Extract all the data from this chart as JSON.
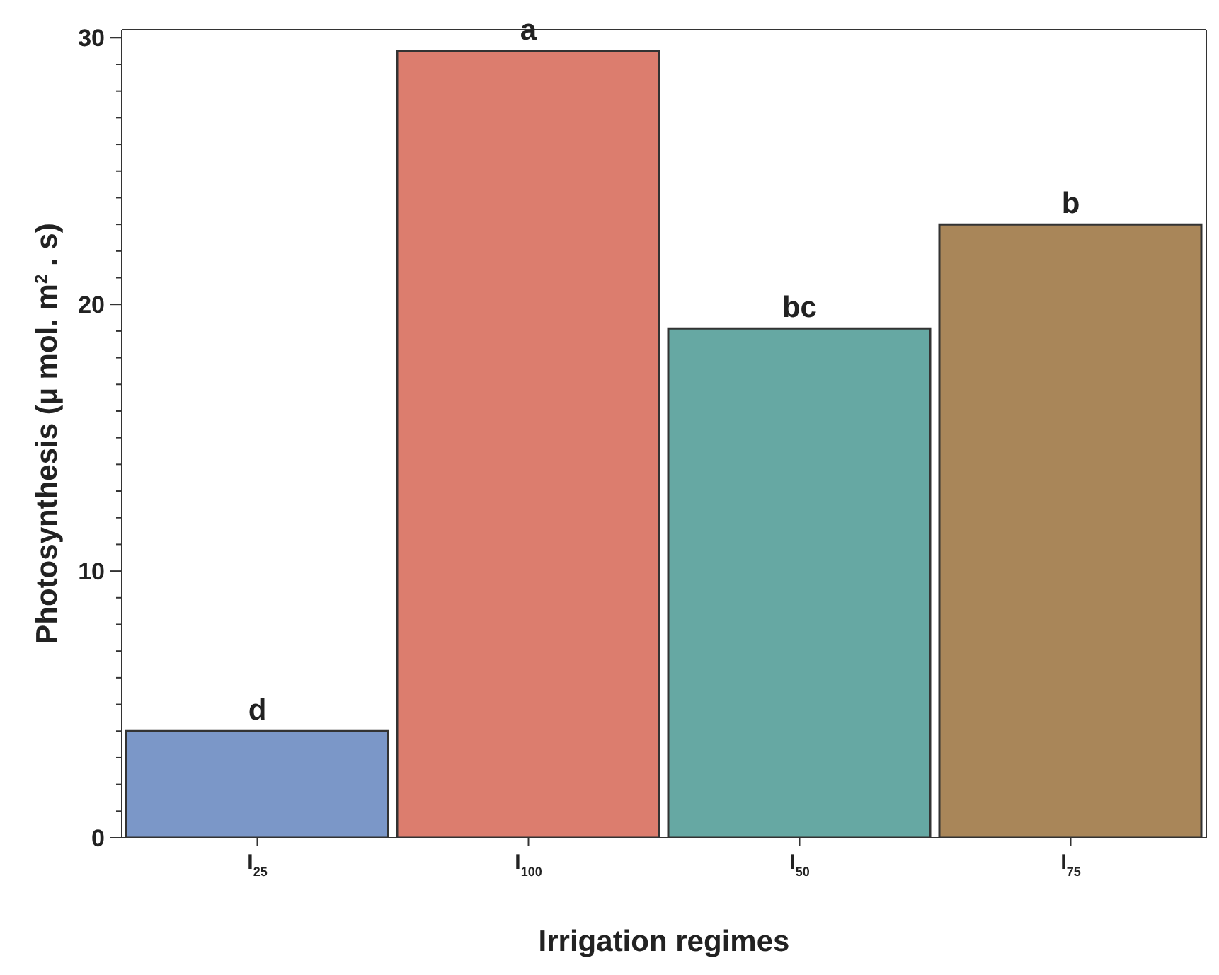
{
  "chart_data": {
    "type": "bar",
    "xlabel": "Irrigation regimes",
    "ylabel": "Photosynthesis (µ mol. m$^{2}$ . s)",
    "categories": [
      "I$_{25}$",
      "I$_{100}$",
      "I$_{50}$",
      "I$_{75}$"
    ],
    "values": [
      4.0,
      29.5,
      19.1,
      23.0
    ],
    "colors": [
      "#7b97c8",
      "#dc7d6e",
      "#66a8a3",
      "#a98659"
    ],
    "ylim": [
      0,
      30.3
    ],
    "yticks": [
      0,
      {
        "value": 1,
        "label": null
      },
      {
        "value": 2,
        "label": null
      },
      {
        "value": 3,
        "label": null
      },
      {
        "value": 4,
        "label": null
      },
      {
        "value": 5,
        "label": null
      },
      {
        "value": 6,
        "label": null
      },
      {
        "value": 7,
        "label": null
      },
      {
        "value": 8,
        "label": null
      },
      {
        "value": 9,
        "label": null
      },
      10,
      {
        "value": 11,
        "label": null
      },
      {
        "value": 12,
        "label": null
      },
      {
        "value": 13,
        "label": null
      },
      {
        "value": 14,
        "label": null
      },
      {
        "value": 15,
        "label": null
      },
      {
        "value": 16,
        "label": null
      },
      {
        "value": 17,
        "label": null
      },
      {
        "value": 18,
        "label": null
      },
      {
        "value": 19,
        "label": null
      },
      20,
      {
        "value": 21,
        "label": null
      },
      {
        "value": 22,
        "label": null
      },
      {
        "value": 23,
        "label": null
      },
      {
        "value": 24,
        "label": null
      },
      {
        "value": 25,
        "label": null
      },
      {
        "value": 26,
        "label": null
      },
      {
        "value": 27,
        "label": null
      },
      {
        "value": 28,
        "label": null
      },
      {
        "value": 29,
        "label": null
      },
      30
    ],
    "annotations": [
      {
        "text": "d",
        "x": "I$_{25}$",
        "y": 4.0
      },
      {
        "text": "a",
        "x": "I$_{100}$",
        "y": 29.5
      },
      {
        "text": "bc",
        "x": "I$_{50}$",
        "y": 19.1
      },
      {
        "text": "b",
        "x": "I$_{75}$",
        "y": 23.0
      }
    ],
    "grid": false,
    "legend": false
  }
}
